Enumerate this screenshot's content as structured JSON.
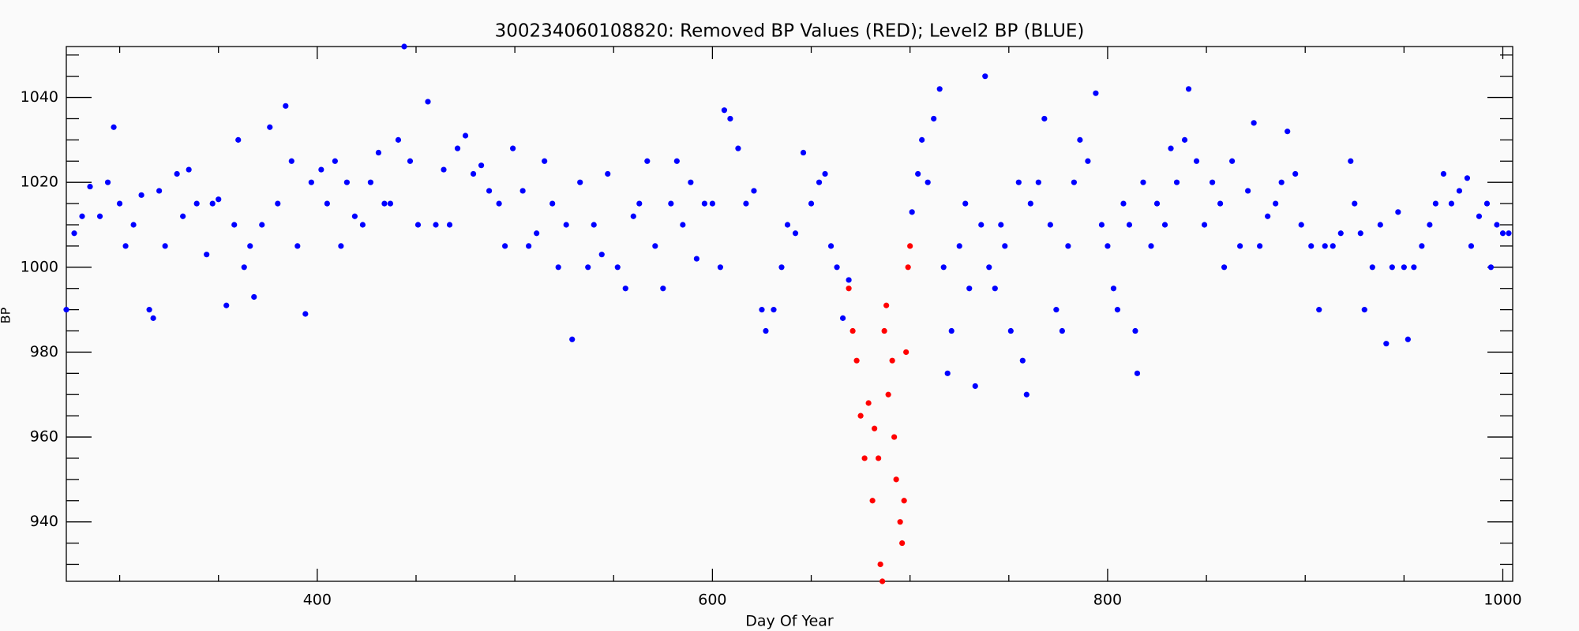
{
  "chart_data": {
    "type": "scatter",
    "title": "300234060108820: Removed BP Values (RED); Level2 BP (BLUE)",
    "xlabel": "Day Of Year",
    "ylabel": "BP",
    "xlim": [
      273,
      1005
    ],
    "ylim": [
      926,
      1052
    ],
    "xticks": [
      400,
      600,
      800,
      1000
    ],
    "yticks": [
      940,
      960,
      980,
      1000,
      1020,
      1040
    ],
    "xminorticks": [
      300,
      350,
      450,
      500,
      550,
      650,
      700,
      750,
      850,
      900,
      950
    ],
    "yminorticks": [
      930,
      935,
      945,
      950,
      955,
      965,
      970,
      975,
      985,
      990,
      995,
      1005,
      1010,
      1015,
      1025,
      1030,
      1035,
      1045,
      1050
    ],
    "series": [
      {
        "color": "#0000ff",
        "x": [
          273,
          277,
          281,
          285,
          290,
          294,
          297,
          300,
          303,
          307,
          311,
          315,
          317,
          320,
          323,
          329,
          332,
          335,
          339,
          344,
          347,
          350,
          354,
          358,
          360,
          363,
          366,
          368,
          372,
          376,
          380,
          384,
          387,
          390,
          394,
          397,
          402,
          405,
          409,
          412,
          415,
          419,
          423,
          427,
          431,
          434,
          437,
          441,
          444,
          447,
          451,
          456,
          460,
          464,
          467,
          471,
          475,
          479,
          483,
          487,
          492,
          495,
          499,
          504,
          507,
          511,
          515,
          519,
          522,
          526,
          529,
          533,
          537,
          540,
          544,
          547,
          552,
          556,
          560,
          563,
          567,
          571,
          575,
          579,
          582,
          585,
          589,
          592,
          596,
          600,
          604,
          606,
          609,
          613,
          617,
          621,
          625,
          627,
          631,
          635,
          638,
          642,
          646,
          650,
          654,
          657,
          660,
          663,
          666,
          669,
          701,
          704,
          706,
          709,
          712,
          715,
          717,
          719,
          721,
          725,
          728,
          730,
          733,
          736,
          738,
          740,
          743,
          746,
          748,
          751,
          755,
          757,
          759,
          761,
          765,
          768,
          771,
          774,
          777,
          780,
          783,
          786,
          790,
          794,
          797,
          800,
          803,
          805,
          808,
          811,
          814,
          815,
          818,
          822,
          825,
          829,
          832,
          835,
          839,
          841,
          845,
          849,
          853,
          857,
          859,
          863,
          867,
          871,
          874,
          877,
          881,
          885,
          888,
          891,
          895,
          898,
          903,
          907,
          910,
          914,
          918,
          923,
          925,
          928,
          930,
          934,
          938,
          941,
          944,
          947,
          950,
          952,
          955,
          959,
          963,
          966,
          970,
          974,
          978,
          982,
          984,
          988,
          992,
          994,
          997,
          1000,
          1003
        ],
        "y": [
          990,
          1008,
          1012,
          1019,
          1012,
          1020,
          1033,
          1015,
          1005,
          1010,
          1017,
          990,
          988,
          1018,
          1005,
          1022,
          1012,
          1023,
          1015,
          1003,
          1015,
          1016,
          991,
          1010,
          1030,
          1000,
          1005,
          993,
          1010,
          1033,
          1015,
          1038,
          1025,
          1005,
          989,
          1020,
          1023,
          1015,
          1025,
          1005,
          1020,
          1012,
          1010,
          1020,
          1027,
          1015,
          1015,
          1030,
          1052,
          1025,
          1010,
          1039,
          1010,
          1023,
          1010,
          1028,
          1031,
          1022,
          1024,
          1018,
          1015,
          1005,
          1028,
          1018,
          1005,
          1008,
          1025,
          1015,
          1000,
          1010,
          983,
          1020,
          1000,
          1010,
          1003,
          1022,
          1000,
          995,
          1012,
          1015,
          1025,
          1005,
          995,
          1015,
          1025,
          1010,
          1020,
          1002,
          1015,
          1015,
          1000,
          1037,
          1035,
          1028,
          1015,
          1018,
          990,
          985,
          990,
          1000,
          1010,
          1008,
          1027,
          1015,
          1020,
          1022,
          1005,
          1000,
          988,
          997,
          1013,
          1022,
          1030,
          1020,
          1035,
          1042,
          1000,
          975,
          985,
          1005,
          1015,
          995,
          972,
          1010,
          1045,
          1000,
          995,
          1010,
          1005,
          985,
          1020,
          978,
          970,
          1015,
          1020,
          1035,
          1010,
          990,
          985,
          1005,
          1020,
          1030,
          1025,
          1041,
          1010,
          1005,
          995,
          990,
          1015,
          1010,
          985,
          975,
          1020,
          1005,
          1015,
          1010,
          1028,
          1020,
          1030,
          1042,
          1025,
          1010,
          1020,
          1015,
          1000,
          1025,
          1005,
          1018,
          1034,
          1005,
          1012,
          1015,
          1020,
          1032,
          1022,
          1010,
          1005,
          990,
          1005,
          1005,
          1008,
          1025,
          1015,
          1008,
          990,
          1000,
          1010,
          982,
          1000,
          1013,
          1000,
          983,
          1000,
          1005,
          1010,
          1015,
          1022,
          1015,
          1018,
          1021,
          1005,
          1012,
          1015,
          1000,
          1010,
          1008,
          1008
        ]
      },
      {
        "color": "#ff0000",
        "x": [
          669,
          671,
          673,
          675,
          677,
          679,
          681,
          682,
          684,
          685,
          686,
          687,
          688,
          689,
          691,
          692,
          693,
          695,
          696,
          697,
          698,
          699,
          700
        ],
        "y": [
          995,
          985,
          978,
          965,
          955,
          968,
          945,
          962,
          955,
          930,
          926,
          985,
          991,
          970,
          978,
          960,
          950,
          940,
          935,
          945,
          980,
          1000,
          1005
        ]
      }
    ]
  }
}
